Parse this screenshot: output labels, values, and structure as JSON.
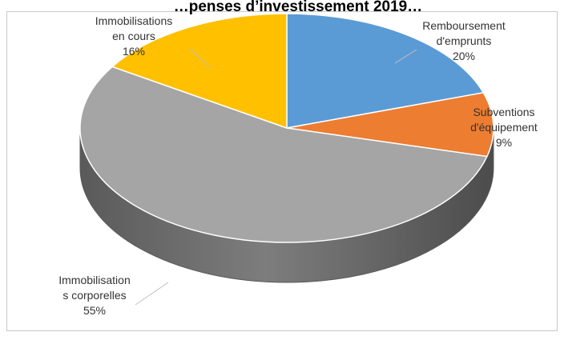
{
  "chart_data": {
    "type": "pie",
    "title": "…penses d’investissement 2019…",
    "slices": [
      {
        "label": "Remboursement d'emprunts",
        "value": 20,
        "color": "#5b9bd5"
      },
      {
        "label": "Subventions d'équipement",
        "value": 9,
        "color": "#ed7d31"
      },
      {
        "label": "Immobilisations corporelles",
        "value": 55,
        "color": "#a5a5a5"
      },
      {
        "label": "Immobilisations en cours",
        "value": 16,
        "color": "#ffc000"
      }
    ],
    "labels": {
      "remb": {
        "lines": [
          "Remboursement",
          "d'emprunts"
        ],
        "pct": "20%"
      },
      "subv": {
        "lines": [
          "Subventions",
          "d'équipement"
        ],
        "pct": "9%"
      },
      "corp": {
        "lines": [
          "Immobilisation",
          "s corporelles"
        ],
        "pct": "55%"
      },
      "cours": {
        "lines": [
          "Immobilisations",
          "en cours"
        ],
        "pct": "16%"
      }
    },
    "style": "3d-pie",
    "legend": "none"
  }
}
